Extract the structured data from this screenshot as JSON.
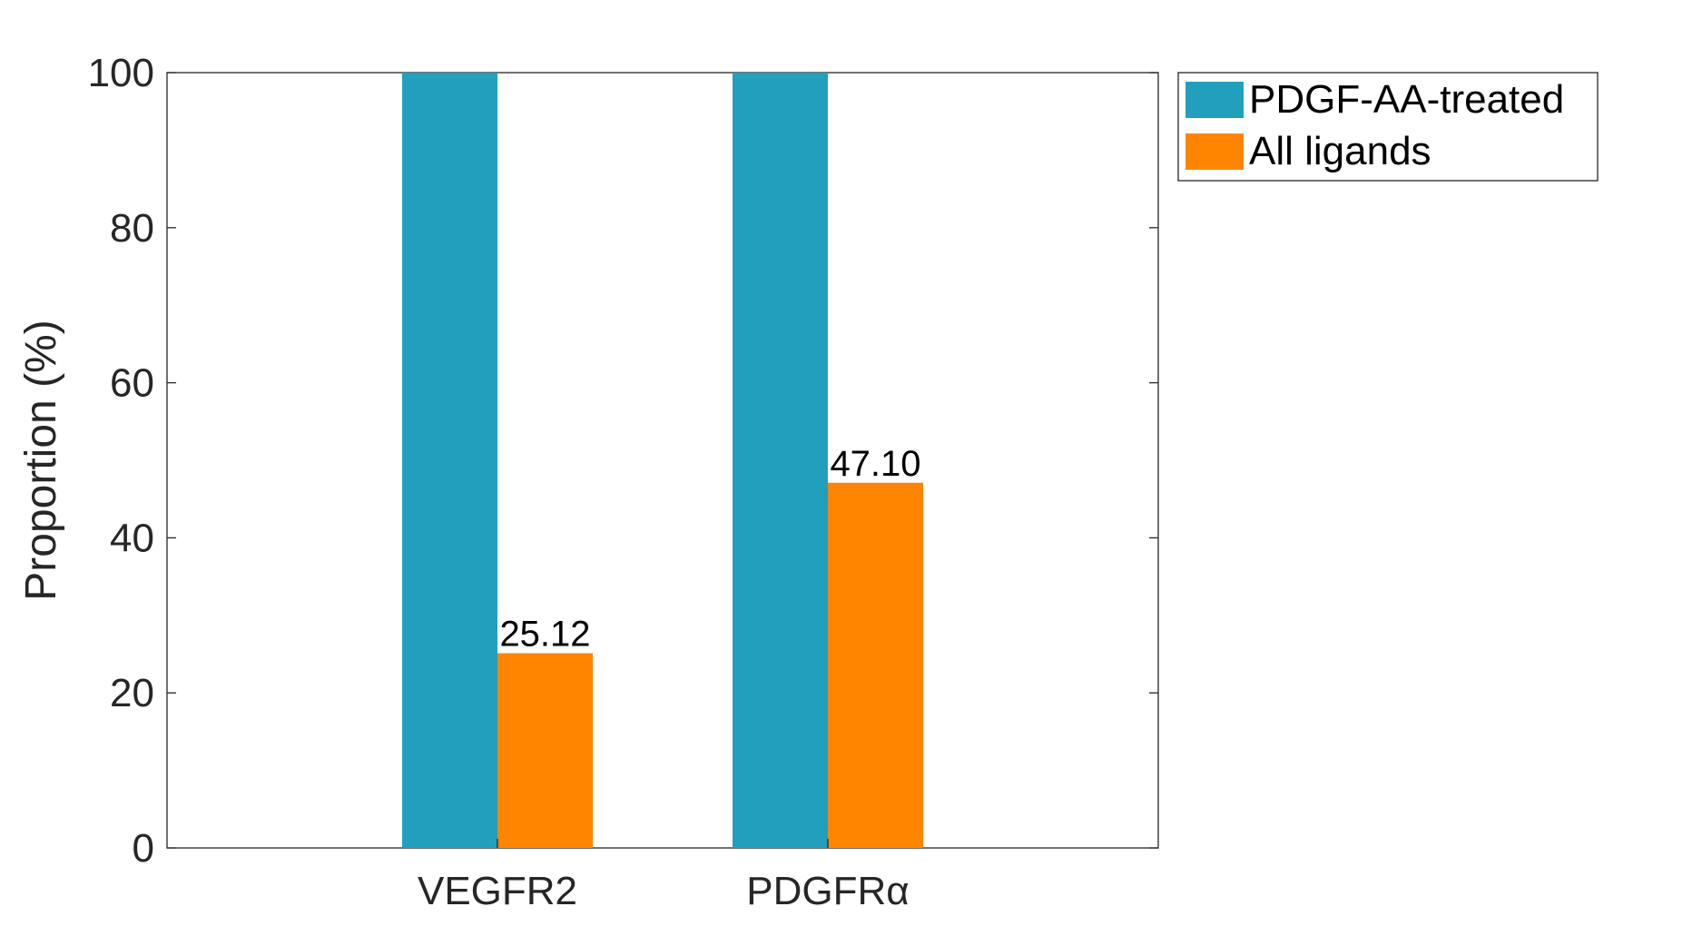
{
  "chart_data": {
    "type": "bar",
    "title": "",
    "xlabel": "",
    "ylabel": "Proportion (%)",
    "ylim": [
      0,
      100
    ],
    "yticks": [
      "0",
      "20",
      "40",
      "60",
      "80",
      "100"
    ],
    "categories": [
      "VEGFR2",
      "PDGFRα"
    ],
    "series": [
      {
        "name": "PDGF-AA-treated",
        "color": "#229fbd",
        "values": [
          100,
          100
        ],
        "labels": [
          "",
          ""
        ]
      },
      {
        "name": "All ligands",
        "color": "#ff8500",
        "values": [
          25.12,
          47.1
        ],
        "labels": [
          "25.12",
          "47.10"
        ]
      }
    ],
    "legend_position": "outside-top-right",
    "grid": false
  }
}
